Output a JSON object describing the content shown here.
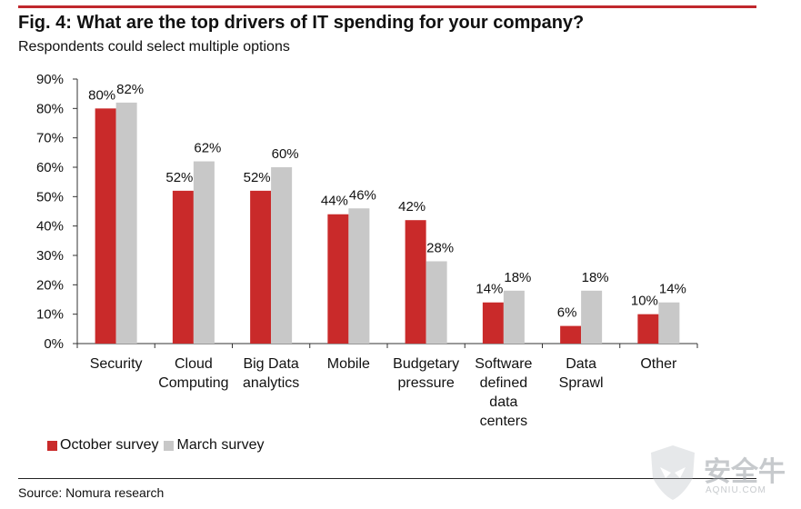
{
  "header": {
    "title": "Fig. 4: What are the top drivers of IT spending for your company?",
    "subtitle": "Respondents could select multiple options"
  },
  "colors": {
    "accent": "#c0272d",
    "october": "#c92a2a",
    "march": "#c8c8c8"
  },
  "chart_data": {
    "type": "bar",
    "title": "Fig. 4: What are the top drivers of IT spending for your company?",
    "subtitle": "Respondents could select multiple options",
    "categories": [
      [
        "Security"
      ],
      [
        "Cloud",
        "Computing"
      ],
      [
        "Big Data",
        "analytics"
      ],
      [
        "Mobile"
      ],
      [
        "Budgetary",
        "pressure"
      ],
      [
        "Software",
        "defined",
        "data",
        "centers"
      ],
      [
        "Data",
        "Sprawl"
      ],
      [
        "Other"
      ]
    ],
    "series": [
      {
        "name": "October survey",
        "values": [
          80,
          52,
          52,
          44,
          42,
          14,
          6,
          10
        ],
        "color": "#c92a2a"
      },
      {
        "name": "March survey",
        "values": [
          82,
          62,
          60,
          46,
          28,
          18,
          18,
          14
        ],
        "color": "#c8c8c8"
      }
    ],
    "ylim": [
      0,
      90
    ],
    "yticks": [
      0,
      10,
      20,
      30,
      40,
      50,
      60,
      70,
      80,
      90
    ],
    "ytick_suffix": "%",
    "legend": "bottom-left",
    "grid": false
  },
  "source": "Source: Nomura research",
  "watermark": {
    "text": "安全牛",
    "sub": "AQNIU.COM",
    "icon": "shield-logo-icon"
  }
}
